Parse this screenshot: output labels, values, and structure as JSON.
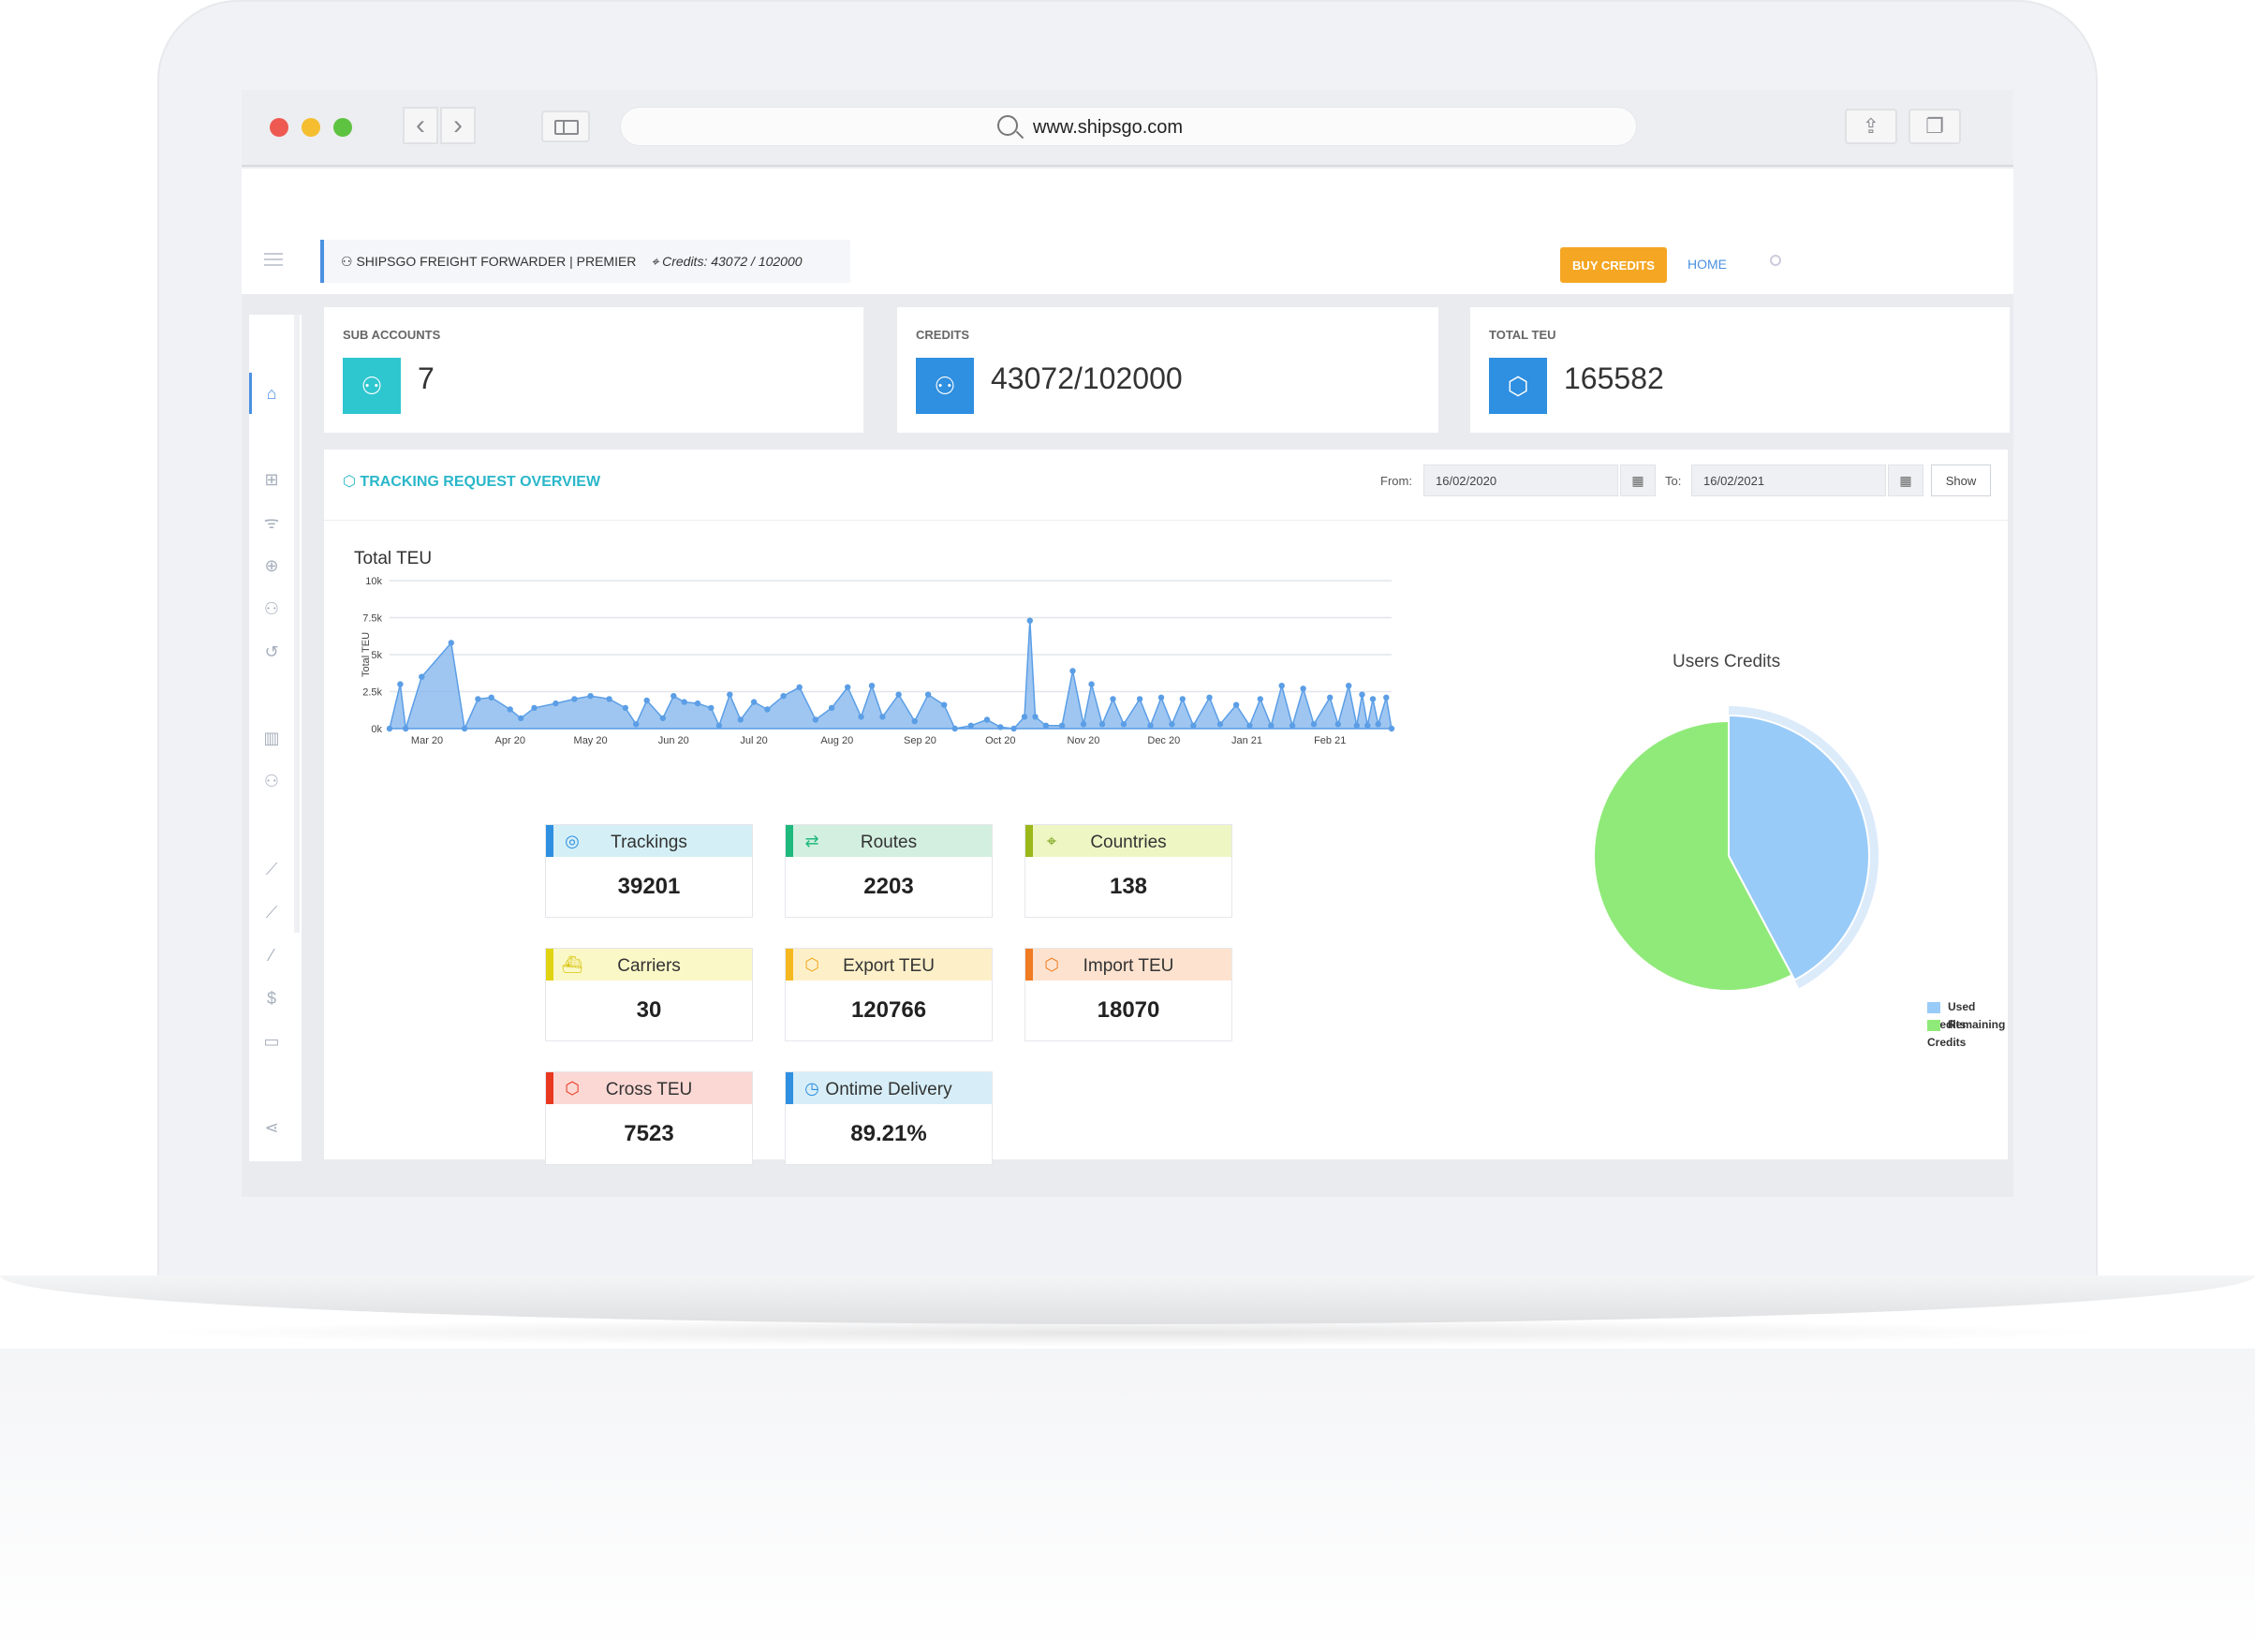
{
  "browser": {
    "url": "www.shipsgo.com",
    "back_icon": "chevron-left-icon",
    "forward_icon": "chevron-right-icon"
  },
  "topnav": {
    "company": "SHIPSGO FREIGHT FORWARDER | PREMIER",
    "credits_text": "Credits: 43072 / 102000",
    "buy_credits": "BUY CREDITS",
    "home": "HOME"
  },
  "sidebar": {
    "icons": [
      "home-icon",
      "grid-icon",
      "rss-icon",
      "add-circle-icon",
      "users-icon",
      "history-icon",
      "bar-chart-icon",
      "user-icon",
      "line-chart-icon",
      "trend-icon",
      "wand-icon",
      "dollar-icon",
      "folder-icon",
      "share-icon"
    ]
  },
  "cards": [
    {
      "label": "SUB ACCOUNTS",
      "value": "7",
      "color": "#2ec6cf"
    },
    {
      "label": "CREDITS",
      "value": "43072/102000",
      "color": "#2f8fe0"
    },
    {
      "label": "TOTAL TEU",
      "value": "165582",
      "color": "#2f8fe0"
    }
  ],
  "overview": {
    "title": "TRACKING REQUEST OVERVIEW",
    "from_label": "From:",
    "from_value": "16/02/2020",
    "to_label": "To:",
    "to_value": "16/02/2021",
    "show": "Show"
  },
  "chart_data": [
    {
      "type": "area",
      "title": "Total TEU",
      "ylabel": "Total TEU",
      "xlabel": "",
      "ylim": [
        0,
        10000
      ],
      "y_ticks": [
        "0k",
        "2.5k",
        "5k",
        "7.5k",
        "10k"
      ],
      "x_ticks": [
        "Mar 20",
        "Apr 20",
        "May 20",
        "Jun 20",
        "Jul 20",
        "Aug 20",
        "Sep 20",
        "Oct 20",
        "Nov 20",
        "Dec 20",
        "Jan 21",
        "Feb 21"
      ],
      "series": [
        {
          "color": "#7fb3ec",
          "points": [
            [
              "2020-02-16",
              0
            ],
            [
              "2020-02-20",
              3000
            ],
            [
              "2020-02-22",
              0
            ],
            [
              "2020-02-28",
              3500
            ],
            [
              "2020-03-10",
              5800
            ],
            [
              "2020-03-15",
              0
            ],
            [
              "2020-03-20",
              2000
            ],
            [
              "2020-03-25",
              2100
            ],
            [
              "2020-04-01",
              1300
            ],
            [
              "2020-04-05",
              700
            ],
            [
              "2020-04-10",
              1400
            ],
            [
              "2020-04-18",
              1700
            ],
            [
              "2020-04-25",
              2000
            ],
            [
              "2020-05-01",
              2200
            ],
            [
              "2020-05-08",
              2000
            ],
            [
              "2020-05-14",
              1400
            ],
            [
              "2020-05-18",
              300
            ],
            [
              "2020-05-22",
              1900
            ],
            [
              "2020-05-28",
              700
            ],
            [
              "2020-06-01",
              2200
            ],
            [
              "2020-06-05",
              1800
            ],
            [
              "2020-06-10",
              1700
            ],
            [
              "2020-06-15",
              1400
            ],
            [
              "2020-06-18",
              200
            ],
            [
              "2020-06-22",
              2300
            ],
            [
              "2020-06-26",
              600
            ],
            [
              "2020-07-01",
              1800
            ],
            [
              "2020-07-06",
              1300
            ],
            [
              "2020-07-12",
              2200
            ],
            [
              "2020-07-18",
              2800
            ],
            [
              "2020-07-24",
              600
            ],
            [
              "2020-07-30",
              1400
            ],
            [
              "2020-08-05",
              2800
            ],
            [
              "2020-08-10",
              800
            ],
            [
              "2020-08-14",
              2900
            ],
            [
              "2020-08-18",
              800
            ],
            [
              "2020-08-24",
              2300
            ],
            [
              "2020-08-30",
              500
            ],
            [
              "2020-09-04",
              2300
            ],
            [
              "2020-09-10",
              1600
            ],
            [
              "2020-09-14",
              0
            ],
            [
              "2020-09-20",
              200
            ],
            [
              "2020-09-26",
              600
            ],
            [
              "2020-10-01",
              100
            ],
            [
              "2020-10-06",
              0
            ],
            [
              "2020-10-10",
              800
            ],
            [
              "2020-10-12",
              7300
            ],
            [
              "2020-10-14",
              800
            ],
            [
              "2020-10-18",
              200
            ],
            [
              "2020-10-24",
              200
            ],
            [
              "2020-10-28",
              3900
            ],
            [
              "2020-11-01",
              300
            ],
            [
              "2020-11-04",
              3000
            ],
            [
              "2020-11-08",
              300
            ],
            [
              "2020-11-12",
              2000
            ],
            [
              "2020-11-16",
              300
            ],
            [
              "2020-11-22",
              2000
            ],
            [
              "2020-11-26",
              200
            ],
            [
              "2020-11-30",
              2100
            ],
            [
              "2020-12-04",
              300
            ],
            [
              "2020-12-08",
              2000
            ],
            [
              "2020-12-12",
              200
            ],
            [
              "2020-12-18",
              2100
            ],
            [
              "2020-12-22",
              300
            ],
            [
              "2020-12-28",
              1600
            ],
            [
              "2021-01-02",
              200
            ],
            [
              "2021-01-06",
              2000
            ],
            [
              "2021-01-10",
              200
            ],
            [
              "2021-01-14",
              2900
            ],
            [
              "2021-01-18",
              200
            ],
            [
              "2021-01-22",
              2700
            ],
            [
              "2021-01-26",
              300
            ],
            [
              "2021-02-01",
              2100
            ],
            [
              "2021-02-04",
              300
            ],
            [
              "2021-02-08",
              2900
            ],
            [
              "2021-02-11",
              200
            ],
            [
              "2021-02-13",
              2300
            ],
            [
              "2021-02-15",
              200
            ],
            [
              "2021-02-17",
              2000
            ],
            [
              "2021-02-19",
              300
            ],
            [
              "2021-02-22",
              2100
            ],
            [
              "2021-02-24",
              0
            ]
          ]
        }
      ]
    },
    {
      "type": "pie",
      "title": "Users Credits",
      "series": [
        {
          "name": "Used Credits",
          "value": 43072,
          "color": "#99cbf8"
        },
        {
          "name": "Remaining Credits",
          "value": 58928,
          "color": "#90ea79"
        }
      ]
    }
  ],
  "stats": [
    {
      "label": "Trackings",
      "value": "39201",
      "bg": "#d4f0f6",
      "bar": "#2f8fe0",
      "icon": "fingerprint-icon",
      "icon_color": "#2f8fe0"
    },
    {
      "label": "Routes",
      "value": "2203",
      "bg": "#d3efe0",
      "bar": "#1eb97c",
      "icon": "route-icon",
      "icon_color": "#1eb97c"
    },
    {
      "label": "Countries",
      "value": "138",
      "bg": "#eef6c4",
      "bar": "#9ab81a",
      "icon": "location-pin-icon",
      "icon_color": "#7aa317"
    },
    {
      "label": "Carriers",
      "value": "30",
      "bg": "#fbf8c7",
      "bar": "#e0d312",
      "icon": "ship-icon",
      "icon_color": "#d9c40f"
    },
    {
      "label": "Export TEU",
      "value": "120766",
      "bg": "#fdf0c9",
      "bar": "#f5b91f",
      "icon": "container-icon",
      "icon_color": "#f0a820"
    },
    {
      "label": "Import TEU",
      "value": "18070",
      "bg": "#fde3cf",
      "bar": "#f07b22",
      "icon": "container-icon",
      "icon_color": "#ef7c22"
    },
    {
      "label": "Cross TEU",
      "value": "7523",
      "bg": "#fcd8d4",
      "bar": "#e8381f",
      "icon": "container-icon",
      "icon_color": "#e8381f"
    },
    {
      "label": "Ontime Delivery",
      "value": "89.21%",
      "bg": "#d7eef8",
      "bar": "#2f8fe0",
      "icon": "clock-icon",
      "icon_color": "#2f8fe0"
    }
  ]
}
